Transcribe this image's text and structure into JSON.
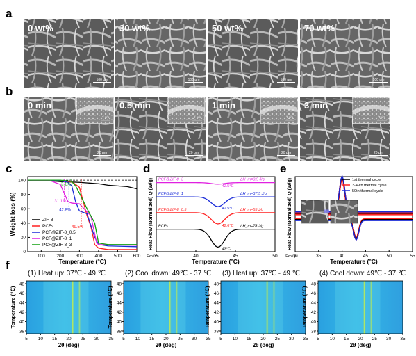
{
  "panel_letters": {
    "a": "a",
    "b": "b",
    "c": "c",
    "d": "d",
    "e": "e",
    "f": "f"
  },
  "row_a": {
    "labels": [
      "0 wt%",
      "30 wt%",
      "50 wt%",
      "70 wt%"
    ],
    "scale_bar": "100 μm"
  },
  "row_b": {
    "labels": [
      "0 min",
      "0.5 min",
      "1 min",
      "3 min"
    ],
    "scale_bar": "20 μm",
    "inset_scale_bar": "2 μm",
    "last_inset_scale_bar": "3 μm"
  },
  "chart_data": [
    {
      "type": "line",
      "panel": "c",
      "xlabel": "Temperature (°C)",
      "ylabel": "Weight loss (%)",
      "xticks": [
        "100",
        "200",
        "300",
        "400",
        "500",
        "600"
      ],
      "yticks": [
        "0",
        "20",
        "40",
        "60",
        "80",
        "100"
      ],
      "xlim": [
        30,
        600
      ],
      "ylim": [
        0,
        105
      ],
      "annotations": [
        "2.1%",
        "31.1%",
        "42.8%",
        "49.5%"
      ],
      "annotation_values": [
        {
          "x": 255,
          "y": 96
        },
        {
          "x": 220,
          "y": 72
        },
        {
          "x": 245,
          "y": 60
        },
        {
          "x": 310,
          "y": 36
        }
      ],
      "legend": [
        "ZIF-8",
        "PCFs",
        "PCF@ZIF-8_0.5",
        "PCF@ZIF-8_1",
        "PCF@ZIF-8_3"
      ],
      "legend_position": "lower-left",
      "colors": [
        "#000000",
        "#ff2020",
        "#1a2bd8",
        "#e020e0",
        "#10a010"
      ],
      "series": [
        {
          "name": "ZIF-8",
          "x": [
            30,
            100,
            200,
            300,
            400,
            450,
            500,
            550,
            600
          ],
          "y": [
            100,
            100,
            98,
            97,
            95,
            93,
            92,
            91,
            88
          ]
        },
        {
          "name": "PCFs",
          "x": [
            30,
            200,
            250,
            270,
            300,
            320,
            340,
            360,
            380,
            400,
            450,
            600
          ],
          "y": [
            100,
            99,
            98,
            96,
            90,
            70,
            50,
            35,
            10,
            5,
            3,
            3
          ]
        },
        {
          "name": "PCF@ZIF-8_0.5",
          "x": [
            30,
            200,
            240,
            260,
            280,
            300,
            340,
            380,
            400,
            450,
            600
          ],
          "y": [
            100,
            99,
            97,
            92,
            70,
            57,
            53,
            20,
            10,
            8,
            7
          ]
        },
        {
          "name": "PCF@ZIF-8_1",
          "x": [
            30,
            150,
            200,
            220,
            240,
            260,
            300,
            360,
            390,
            400,
            600
          ],
          "y": [
            100,
            99,
            94,
            82,
            70,
            68,
            67,
            50,
            12,
            10,
            9
          ]
        },
        {
          "name": "PCF@ZIF-8_3",
          "x": [
            30,
            200,
            240,
            260,
            280,
            300,
            340,
            380,
            400,
            450,
            600
          ],
          "y": [
            100,
            100,
            99,
            98,
            92,
            82,
            60,
            40,
            12,
            10,
            10
          ]
        }
      ],
      "reference_line_y": 100
    },
    {
      "type": "line",
      "panel": "d",
      "xlabel": "Temperature (°C)",
      "ylabel": "Heat Flow (Normalized) Q (W/g)",
      "xticks": [
        "35",
        "40",
        "45",
        "50"
      ],
      "xlim": [
        35,
        50
      ],
      "ylim": [
        0,
        100
      ],
      "exo_label": "Exo up",
      "colors": [
        "#e020e0",
        "#1a2bd8",
        "#ff2020",
        "#000000"
      ],
      "series": [
        {
          "name": "PCF@ZIF-8_3",
          "label_text": "PCF@ZIF-8_3",
          "offset": 92,
          "dip_depth": 2,
          "peak_label": "42.5°C",
          "enthalpy": "ΔH_m=3.5 J/g"
        },
        {
          "name": "PCF@ZIF-8_1",
          "label_text": "PCF@ZIF-8_1",
          "offset": 73,
          "dip_depth": 13,
          "peak_label": "42.5°C",
          "enthalpy": "ΔH_m=37.5 J/g"
        },
        {
          "name": "PCF@ZIF-8_0.5",
          "label_text": "PCF@ZIF-8_0.5",
          "offset": 52,
          "dip_depth": 15,
          "peak_label": "42.6°C",
          "enthalpy": "ΔH_m=55 J/g"
        },
        {
          "name": "PCFs",
          "label_text": "PCFs",
          "offset": 30,
          "dip_depth": 24,
          "peak_label": "43°C",
          "enthalpy": "ΔH_m=78 J/g"
        }
      ]
    },
    {
      "type": "line",
      "panel": "e",
      "xlabel": "Temperature (°C)",
      "ylabel": "Heat Flow (Normalized) Q (W/g)",
      "xticks": [
        "30",
        "35",
        "40",
        "45",
        "50",
        "55"
      ],
      "xlim": [
        30,
        55
      ],
      "ylim": [
        0,
        100
      ],
      "exo_label": "Exo up",
      "legend": [
        "1st thermal cycle",
        "2-49th thermal cycle",
        "50th thermal cycle"
      ],
      "legend_position": "top-right",
      "colors": [
        "#000000",
        "#ff2020",
        "#1a2bd8"
      ],
      "heating_peak_temperature": 43,
      "cooling_peak_temperature": 40
    }
  ],
  "row_f": {
    "titles": [
      "(1) Heat up: 37℃ - 49 ℃",
      "(2) Cool down: 49℃ - 37 ℃",
      "(3) Heat up: 37℃ - 49 ℃",
      "(4) Cool down: 49℃ - 37 ℃"
    ],
    "ylabel": "Temperature (℃)",
    "xlabel": "2θ (deg)",
    "yticks": [
      "48",
      "46",
      "44",
      "42",
      "40",
      "38"
    ],
    "xticks": [
      "5",
      "10",
      "15",
      "20",
      "25",
      "30",
      "35"
    ],
    "peak_two_theta": [
      21.4,
      23.8
    ]
  }
}
